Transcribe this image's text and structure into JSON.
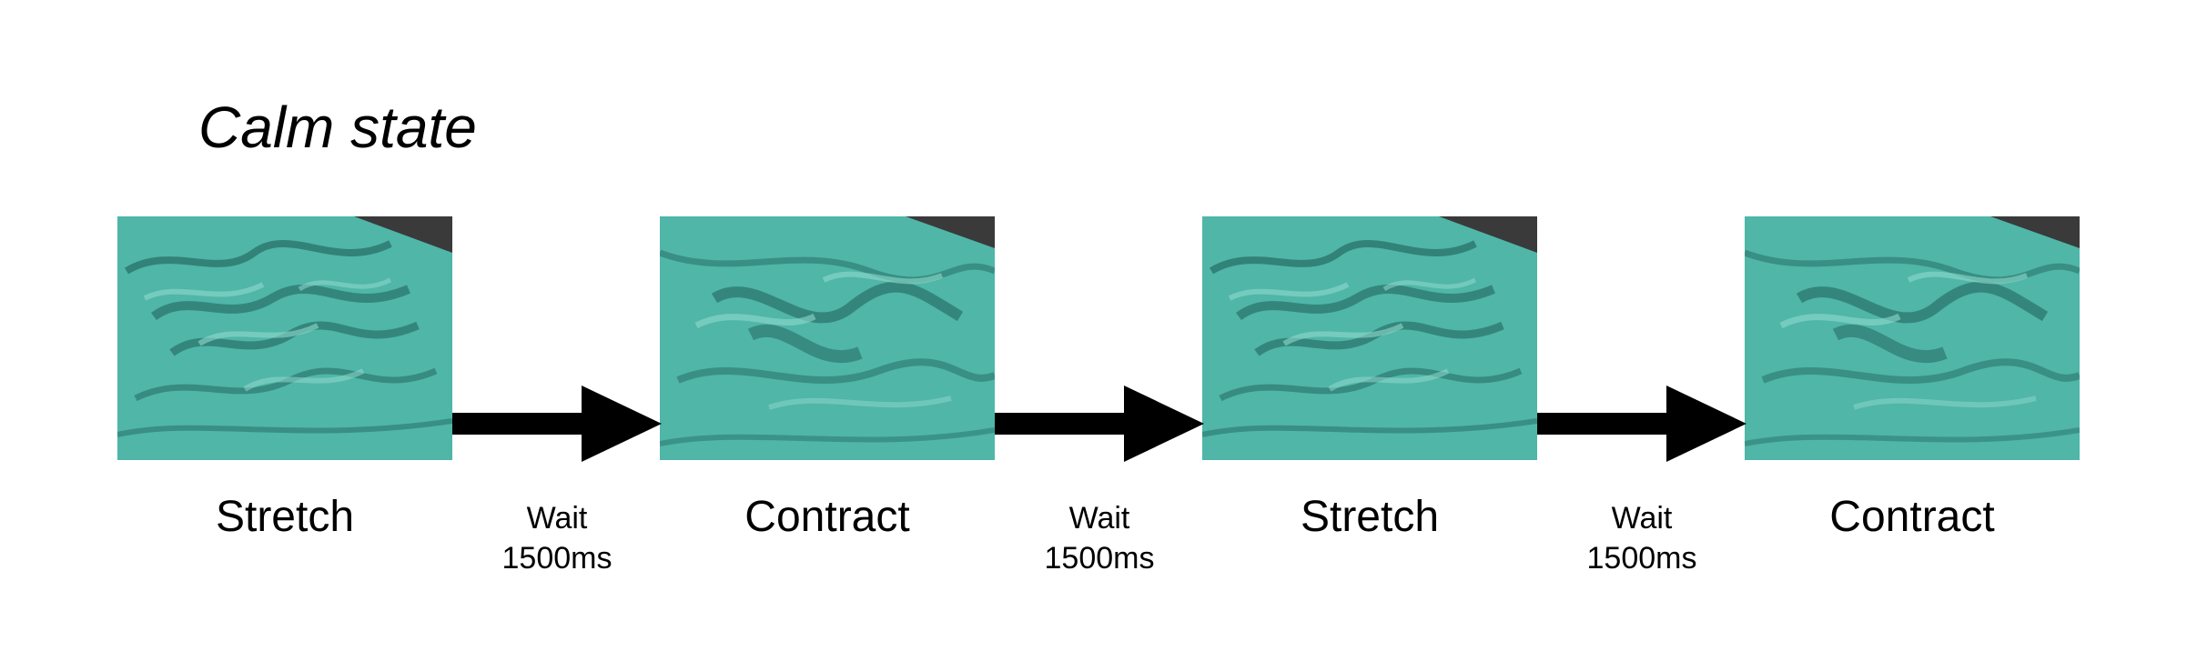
{
  "title": "Calm state",
  "frames": [
    {
      "label": "Stretch",
      "state": "stretch"
    },
    {
      "label": "Contract",
      "state": "contract"
    },
    {
      "label": "Stretch",
      "state": "stretch"
    },
    {
      "label": "Contract",
      "state": "contract"
    }
  ],
  "transitions": [
    {
      "line1": "Wait",
      "line2": "1500ms"
    },
    {
      "line1": "Wait",
      "line2": "1500ms"
    },
    {
      "line1": "Wait",
      "line2": "1500ms"
    }
  ],
  "colors": {
    "fabric": "#4fb6a8",
    "fabric_dark": "#1f5f58",
    "fabric_light": "#8fd8cc",
    "background_dark": "#3a3a3a",
    "arrow": "#000000"
  }
}
